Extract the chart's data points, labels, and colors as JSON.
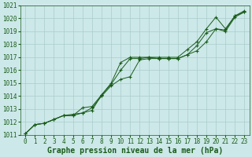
{
  "xlabel": "Graphe pression niveau de la mer (hPa)",
  "xlim": [
    -0.5,
    23.5
  ],
  "ylim": [
    1011,
    1021
  ],
  "yticks": [
    1011,
    1012,
    1013,
    1014,
    1015,
    1016,
    1017,
    1018,
    1019,
    1020,
    1021
  ],
  "xticks": [
    0,
    1,
    2,
    3,
    4,
    5,
    6,
    7,
    8,
    9,
    10,
    11,
    12,
    13,
    14,
    15,
    16,
    17,
    18,
    19,
    20,
    21,
    22,
    23
  ],
  "background_color": "#cce8e8",
  "plot_bg_color": "#cce8e8",
  "grid_color": "#aacccc",
  "line_color": "#1a5c1a",
  "series1": [
    1011.1,
    1011.8,
    1011.9,
    1012.2,
    1012.5,
    1012.5,
    1012.7,
    1013.1,
    1014.0,
    1014.8,
    1015.3,
    1015.5,
    1016.8,
    1016.9,
    1016.9,
    1016.9,
    1016.9,
    1017.2,
    1017.9,
    1018.9,
    1019.2,
    1019.1,
    1020.2,
    1020.5
  ],
  "series2": [
    1011.1,
    1011.8,
    1011.9,
    1012.2,
    1012.5,
    1012.6,
    1012.7,
    1012.9,
    1014.1,
    1014.9,
    1016.0,
    1016.9,
    1016.9,
    1017.0,
    1016.9,
    1016.9,
    1016.9,
    1017.2,
    1017.5,
    1018.2,
    1019.2,
    1019.0,
    1020.1,
    1020.5
  ],
  "series3": [
    1011.1,
    1011.8,
    1011.9,
    1012.2,
    1012.5,
    1012.5,
    1013.1,
    1013.2,
    1014.1,
    1015.0,
    1016.6,
    1017.0,
    1017.0,
    1017.0,
    1017.0,
    1017.0,
    1017.0,
    1017.6,
    1018.2,
    1019.2,
    1020.1,
    1019.2,
    1020.2,
    1020.6
  ],
  "font_family": "monospace",
  "tick_fontsize": 5.5,
  "xlabel_fontsize": 7,
  "marker": "+"
}
